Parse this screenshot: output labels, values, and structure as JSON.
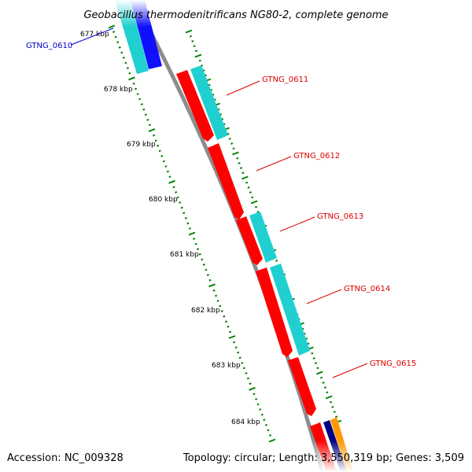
{
  "title": "Geobacillus thermodenitrificans NG80-2, complete genome",
  "footer": {
    "accession": "Accession: NC_009328",
    "summary": "Topology: circular; Length: 3,550,319 bp; Genes: 3,509"
  },
  "colors": {
    "backbone": "#8c8c8c",
    "cds_red": "#ff0000",
    "cds_cyan": "#20d0d0",
    "cds_blue": "#1010ff",
    "cds_navy": "#000080",
    "cds_orange": "#ff9900",
    "tick": "#008000",
    "label_blue": "#0000cc",
    "label_red": "#dd0000"
  },
  "ticks": [
    "677 kbp",
    "678 kbp",
    "679 kbp",
    "680 kbp",
    "681 kbp",
    "682 kbp",
    "683 kbp",
    "684 kbp"
  ],
  "gene_labels": [
    {
      "text": "GTNG_0610",
      "color": "blue"
    },
    {
      "text": "GTNG_0611",
      "color": "red"
    },
    {
      "text": "GTNG_0612",
      "color": "red"
    },
    {
      "text": "GTNG_0613",
      "color": "red"
    },
    {
      "text": "GTNG_0614",
      "color": "red"
    },
    {
      "text": "GTNG_0615",
      "color": "red"
    }
  ]
}
